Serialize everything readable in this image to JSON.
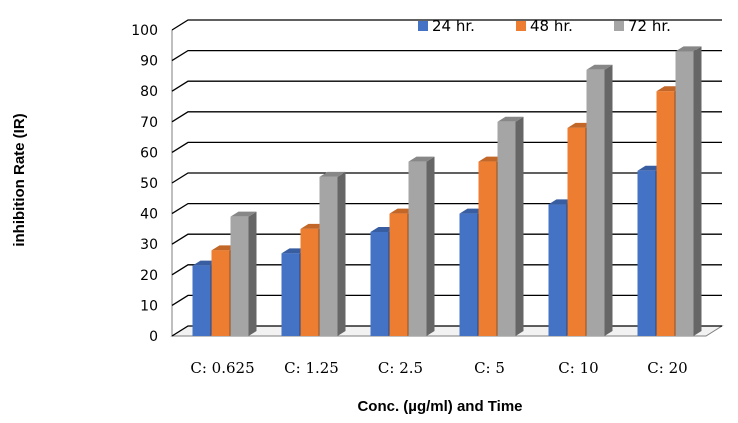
{
  "chart_data": {
    "type": "bar",
    "title": "",
    "xlabel": "Conc. (µg/ml)  and Time",
    "ylabel": "inhibition Rate (IR)",
    "categories": [
      "C: 0.625",
      "C: 1.25",
      "C: 2.5",
      "C: 5",
      "C: 10",
      "C: 20"
    ],
    "series": [
      {
        "name": "24 hr.",
        "color": "#4472C4",
        "values": [
          23,
          27,
          34,
          40,
          43,
          54
        ]
      },
      {
        "name": "48 hr.",
        "color": "#ED7D31",
        "values": [
          28,
          35,
          40,
          57,
          68,
          80
        ]
      },
      {
        "name": "72 hr.",
        "color": "#A5A5A5",
        "values": [
          39,
          52,
          57,
          70,
          87,
          93
        ]
      }
    ],
    "ylim": [
      0,
      100
    ],
    "yticks": [
      0,
      10,
      20,
      30,
      40,
      50,
      60,
      70,
      80,
      90,
      100
    ],
    "grid": true,
    "legend_position": "top-right",
    "style": "3d-clustered-column"
  }
}
